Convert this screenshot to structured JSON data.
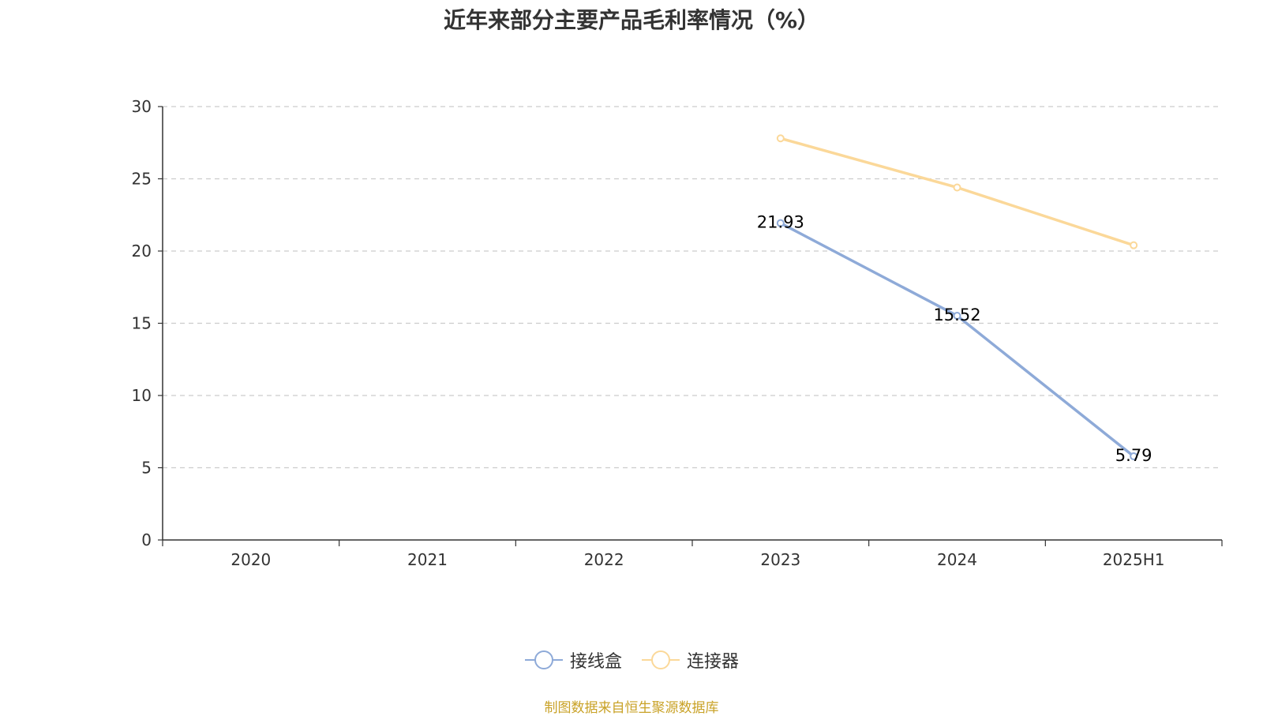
{
  "chart_data": {
    "type": "line",
    "title": "近年来部分主要产品毛利率情况（%）",
    "categories": [
      "2020",
      "2021",
      "2022",
      "2023",
      "2024",
      "2025H1"
    ],
    "ylim": [
      0,
      30
    ],
    "yticks": [
      "0",
      "5",
      "10",
      "15",
      "20",
      "25",
      "30"
    ],
    "grid": true,
    "legend_position": "bottom",
    "series": [
      {
        "name": "接线盒",
        "color": "#8eaad8",
        "values": [
          null,
          null,
          null,
          21.93,
          15.52,
          5.79
        ],
        "labels": [
          "",
          "",
          "",
          "21.93",
          "15.52",
          "5.79"
        ]
      },
      {
        "name": "连接器",
        "color": "#fbd899",
        "values": [
          null,
          null,
          null,
          27.8,
          24.4,
          20.4
        ],
        "labels": [
          "",
          "",
          "",
          "",
          "",
          ""
        ]
      }
    ]
  },
  "footer": {
    "source": "制图数据来自恒生聚源数据库"
  }
}
